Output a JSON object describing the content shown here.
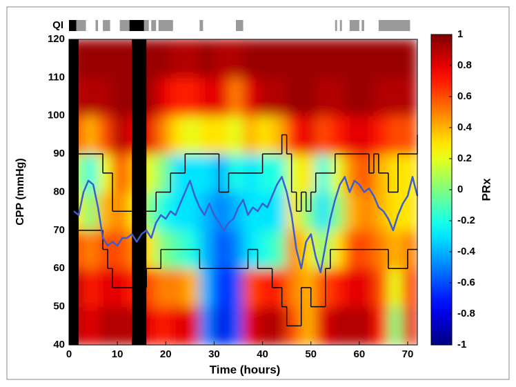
{
  "chart_data": {
    "type": "heatmap",
    "xlabel": "Time (hours)",
    "ylabel": "CPP (mmHg)",
    "xlim": [
      0,
      72
    ],
    "ylim": [
      40,
      120
    ],
    "xticks": [
      0,
      10,
      20,
      30,
      40,
      50,
      60,
      70
    ],
    "yticks": [
      40,
      50,
      60,
      70,
      80,
      90,
      100,
      110,
      120
    ],
    "x_edges": [
      0,
      3,
      6,
      9,
      12,
      15,
      18,
      21,
      24,
      27,
      30,
      33,
      36,
      39,
      42,
      45,
      48,
      51,
      54,
      57,
      60,
      63,
      66,
      69,
      72
    ],
    "y_edges": [
      40,
      50,
      60,
      70,
      80,
      90,
      100,
      110,
      120
    ],
    "values": [
      [
        0.9,
        0.9,
        0.6,
        0.3,
        0.1,
        0.6,
        0.9,
        0.95
      ],
      [
        0.8,
        0.7,
        0.5,
        0.0,
        -0.2,
        0.4,
        0.9,
        0.95
      ],
      [
        0.9,
        0.8,
        0.6,
        0.4,
        0.2,
        0.6,
        0.9,
        0.95
      ],
      [
        0.9,
        0.8,
        0.6,
        0.5,
        0.6,
        0.9,
        0.95,
        0.95
      ],
      [
        0.9,
        0.7,
        0.5,
        0.3,
        0.4,
        0.8,
        0.95,
        0.95
      ],
      [
        0.8,
        0.6,
        0.3,
        0.0,
        0.2,
        0.8,
        0.95,
        0.95
      ],
      [
        0.7,
        0.5,
        0.0,
        -0.2,
        0.0,
        0.5,
        0.8,
        0.95
      ],
      [
        0.8,
        0.5,
        -0.1,
        -0.3,
        -0.3,
        0.3,
        0.7,
        0.9
      ],
      [
        0.8,
        0.4,
        -0.2,
        -0.3,
        -0.3,
        0.2,
        0.7,
        0.9
      ],
      [
        -0.5,
        -0.4,
        -0.4,
        -0.4,
        -0.3,
        0.3,
        0.8,
        0.95
      ],
      [
        -0.8,
        -0.7,
        -0.6,
        -0.5,
        -0.4,
        0.3,
        0.8,
        0.9
      ],
      [
        -0.6,
        -0.6,
        -0.5,
        -0.4,
        -0.2,
        0.2,
        0.5,
        0.9
      ],
      [
        0.8,
        0.6,
        -0.3,
        -0.3,
        -0.3,
        0.4,
        0.8,
        0.95
      ],
      [
        0.9,
        0.7,
        -0.2,
        -0.3,
        -0.2,
        0.3,
        0.9,
        0.95
      ],
      [
        0.9,
        0.7,
        -0.1,
        -0.3,
        -0.2,
        0.4,
        0.9,
        0.95
      ],
      [
        0.6,
        0.5,
        0.5,
        0.3,
        0.2,
        0.7,
        0.95,
        0.95
      ],
      [
        0.4,
        0.4,
        0.3,
        0.0,
        0.3,
        0.8,
        0.95,
        0.95
      ],
      [
        0.8,
        0.6,
        0.0,
        -0.3,
        -0.2,
        0.6,
        0.9,
        0.95
      ],
      [
        0.9,
        0.7,
        0.3,
        0.0,
        0.2,
        0.7,
        0.9,
        0.95
      ],
      [
        0.9,
        0.8,
        0.6,
        0.4,
        0.5,
        0.8,
        0.95,
        0.95
      ],
      [
        0.9,
        0.8,
        0.6,
        0.5,
        0.6,
        0.8,
        0.95,
        0.95
      ],
      [
        0.7,
        0.6,
        0.5,
        0.4,
        0.4,
        0.7,
        0.9,
        0.95
      ],
      [
        0.0,
        0.2,
        0.4,
        0.3,
        0.3,
        0.6,
        0.9,
        0.95
      ],
      [
        0.8,
        0.7,
        0.5,
        0.3,
        0.3,
        0.6,
        0.9,
        0.95
      ]
    ],
    "missing": [
      [
        0,
        2
      ],
      [
        13,
        16
      ]
    ],
    "missing_color": "#000000",
    "cpp": {
      "color": "#3a5fcd",
      "x": [
        1,
        2,
        3,
        4,
        5,
        6,
        7,
        8,
        9,
        10,
        11,
        12,
        13,
        14,
        15,
        16,
        17,
        18,
        19,
        20,
        21,
        22,
        23,
        24,
        25,
        26,
        27,
        28,
        29,
        30,
        31,
        32,
        33,
        34,
        35,
        36,
        37,
        38,
        39,
        40,
        41,
        42,
        43,
        44,
        45,
        46,
        47,
        48,
        49,
        50,
        51,
        52,
        53,
        54,
        55,
        56,
        57,
        58,
        59,
        60,
        61,
        62,
        63,
        64,
        65,
        66,
        67,
        68,
        69,
        70,
        71,
        72
      ],
      "values": [
        75,
        74,
        80,
        83,
        82,
        76,
        68,
        66,
        67,
        66,
        68,
        68,
        69,
        67,
        69,
        70,
        68,
        72,
        74,
        73,
        75,
        74,
        77,
        80,
        83,
        79,
        76,
        74,
        77,
        74,
        72,
        70,
        72,
        73,
        76,
        78,
        74,
        76,
        75,
        77,
        76,
        79,
        82,
        84,
        80,
        74,
        65,
        60,
        67,
        69,
        63,
        59,
        66,
        73,
        78,
        82,
        84,
        80,
        83,
        82,
        80,
        81,
        79,
        76,
        75,
        73,
        70,
        74,
        77,
        79,
        84,
        79
      ]
    },
    "upper": {
      "color": "#000000",
      "x": [
        2,
        7,
        9,
        16,
        18,
        21,
        24,
        31,
        33,
        35,
        40,
        44,
        45,
        46,
        47,
        48,
        49,
        50,
        51,
        55,
        57,
        62,
        63,
        64,
        66,
        68,
        72
      ],
      "values": [
        90,
        85,
        75,
        75,
        80,
        85,
        90,
        80,
        85,
        85,
        90,
        95,
        90,
        80,
        75,
        80,
        75,
        80,
        85,
        90,
        90,
        85,
        90,
        85,
        80,
        90,
        95
      ]
    },
    "lower": {
      "color": "#000000",
      "x": [
        2,
        7,
        8,
        9,
        13,
        16,
        19,
        27,
        31,
        37,
        39,
        42,
        44,
        45,
        48,
        50,
        53,
        54,
        58,
        66,
        70,
        72
      ],
      "values": [
        70,
        65,
        60,
        55,
        55,
        60,
        65,
        60,
        60,
        65,
        60,
        55,
        50,
        45,
        55,
        50,
        60,
        65,
        65,
        60,
        65,
        65
      ]
    },
    "qi_label": "QI",
    "qi_black": [
      [
        0,
        1.5
      ],
      [
        12.5,
        15.5
      ]
    ],
    "qi_gray": [
      [
        1.5,
        3.5
      ],
      [
        5.5,
        6
      ],
      [
        7,
        8.5
      ],
      [
        10.5,
        12.5
      ],
      [
        15.5,
        16.5
      ],
      [
        17,
        18
      ],
      [
        18.5,
        21.5
      ],
      [
        27,
        27.7
      ],
      [
        34.5,
        36
      ],
      [
        55,
        55.4
      ],
      [
        56,
        56.4
      ],
      [
        58,
        60
      ],
      [
        60.5,
        61
      ],
      [
        64,
        70.5
      ]
    ],
    "qi_gray_color": "#9a9a9a",
    "qi_black_color": "#000000",
    "colorbar_label": "PRx",
    "clim": [
      -1,
      1
    ],
    "cticks": [
      -1,
      -0.8,
      -0.6,
      -0.4,
      -0.2,
      0,
      0.2,
      0.4,
      0.6,
      0.8,
      1
    ]
  }
}
